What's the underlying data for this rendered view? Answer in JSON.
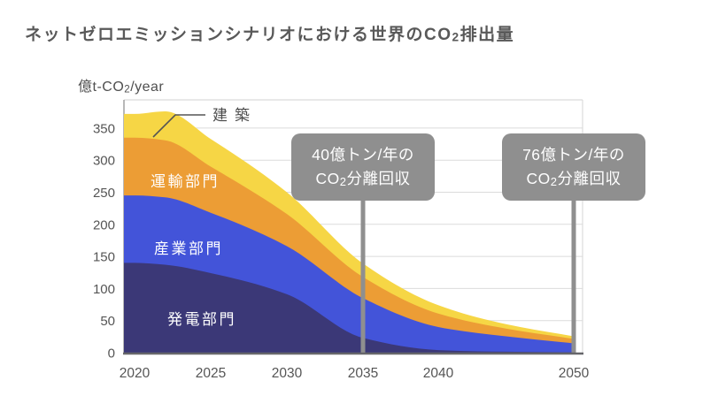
{
  "title": "ネットゼロエミッションシナリオにおける世界のCO2排出量",
  "y_axis_unit": "億t-CO2/year",
  "chart_data": {
    "type": "area",
    "stacked": true,
    "title": "ネットゼロエミッションシナリオにおける世界のCO2排出量",
    "ylabel": "億t-CO2/year",
    "xlabel": "",
    "grid": true,
    "x_years": [
      2020,
      2022,
      2025,
      2030,
      2035,
      2040,
      2045,
      2050
    ],
    "series": [
      {
        "name": "発電部門",
        "label_style": "in-area",
        "color": "#3B3877",
        "values": [
          140,
          137,
          124,
          91,
          23,
          4,
          1.5,
          0.5
        ]
      },
      {
        "name": "産業部門",
        "label_style": "in-area",
        "color": "#4354D9",
        "values": [
          105,
          105,
          94,
          75,
          62,
          36,
          24,
          14
        ]
      },
      {
        "name": "運輸部門",
        "label_style": "in-area",
        "color": "#EC9D35",
        "values": [
          90,
          89,
          72,
          50,
          33,
          21,
          12,
          7
        ]
      },
      {
        "name": "建築",
        "label_style": "callout",
        "color": "#F6D645",
        "values": [
          37,
          45,
          43,
          34,
          21,
          13,
          7,
          4
        ]
      }
    ],
    "xticks": [
      "2020",
      "2025",
      "2030",
      "2035",
      "2040",
      "2050"
    ],
    "xtick_years": [
      2020,
      2025,
      2030,
      2035,
      2040,
      2050
    ],
    "yticks": [
      0,
      50,
      100,
      150,
      200,
      250,
      300,
      350
    ],
    "ylim": [
      0,
      394
    ],
    "xlim": [
      2020,
      2050
    ],
    "annotations": [
      {
        "x_year": 2035,
        "lines": [
          "40億トン/年の",
          "CO2分離回収"
        ]
      },
      {
        "x_year": 2050,
        "lines": [
          "76億トン/年の",
          "CO2分離回収"
        ]
      }
    ],
    "colors": {
      "annotation_box": "#8F8F8F",
      "annotation_text": "#FFFFFF",
      "grid_line": "#DBDBDB",
      "axis_line": "#66666A",
      "tick_text": "#555555",
      "title_text": "#595959",
      "in_area_label_text": "#FFFFFF",
      "callout_label_text": "#4A4A4A",
      "background": "#FFFFFF"
    }
  }
}
